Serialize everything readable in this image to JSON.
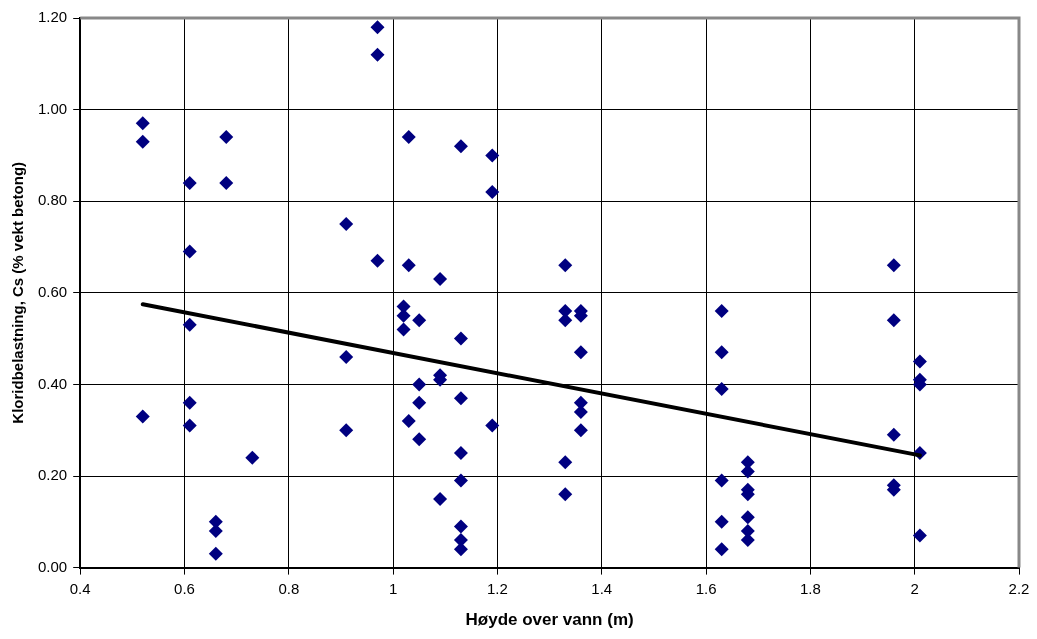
{
  "chart_data": {
    "type": "scatter",
    "xlabel": "Høyde over vann (m)",
    "ylabel": "Kloridbelastning, Cs (% vekt betong)",
    "xlim": [
      0.4,
      2.2
    ],
    "xticks": [
      0.4,
      0.6,
      0.8,
      1,
      1.2,
      1.4,
      1.6,
      1.8,
      2,
      2.2
    ],
    "ylim": [
      0,
      1.2
    ],
    "yticks": [
      {
        "value": 0,
        "label": "0.00"
      },
      {
        "value": 0.2,
        "label": "0.20"
      },
      {
        "value": 0.4,
        "label": "0.40"
      },
      {
        "value": 0.6,
        "label": "0.60"
      },
      {
        "value": 0.8,
        "label": "0.80"
      },
      {
        "value": 1,
        "label": "1.00"
      },
      {
        "value": 1.2,
        "label": "1.20"
      }
    ],
    "grid": true,
    "legend": false,
    "marker": "diamond",
    "series": [
      {
        "color": "#000080",
        "x": [
          0.52,
          0.52,
          0.52,
          0.61,
          0.61,
          0.61,
          0.61,
          0.61,
          0.66,
          0.66,
          0.66,
          0.68,
          0.68,
          0.73,
          0.91,
          0.91,
          0.91,
          0.97,
          0.97,
          0.97,
          1.02,
          1.02,
          1.02,
          1.03,
          1.03,
          1.03,
          1.05,
          1.05,
          1.05,
          1.05,
          1.09,
          1.09,
          1.09,
          1.09,
          1.13,
          1.13,
          1.13,
          1.13,
          1.13,
          1.13,
          1.13,
          1.13,
          1.19,
          1.19,
          1.19,
          1.33,
          1.33,
          1.33,
          1.33,
          1.33,
          1.36,
          1.36,
          1.36,
          1.36,
          1.36,
          1.36,
          1.63,
          1.63,
          1.63,
          1.63,
          1.63,
          1.63,
          1.68,
          1.68,
          1.68,
          1.68,
          1.68,
          1.68,
          1.68,
          1.96,
          1.96,
          1.96,
          1.96,
          1.96,
          2.01,
          2.01,
          2.01,
          2.01,
          2.01
        ],
        "values": [
          0.97,
          0.93,
          0.33,
          0.84,
          0.69,
          0.53,
          0.36,
          0.31,
          0.1,
          0.08,
          0.03,
          0.94,
          0.84,
          0.24,
          0.75,
          0.46,
          0.3,
          1.18,
          1.12,
          0.67,
          0.57,
          0.55,
          0.52,
          0.94,
          0.66,
          0.32,
          0.54,
          0.4,
          0.36,
          0.28,
          0.63,
          0.42,
          0.41,
          0.15,
          0.92,
          0.5,
          0.37,
          0.25,
          0.19,
          0.09,
          0.06,
          0.04,
          0.9,
          0.82,
          0.31,
          0.66,
          0.56,
          0.54,
          0.23,
          0.16,
          0.56,
          0.55,
          0.47,
          0.36,
          0.34,
          0.3,
          0.56,
          0.47,
          0.39,
          0.19,
          0.1,
          0.04,
          0.23,
          0.21,
          0.17,
          0.16,
          0.11,
          0.08,
          0.06,
          0.66,
          0.54,
          0.29,
          0.18,
          0.17,
          0.45,
          0.41,
          0.4,
          0.25,
          0.07
        ]
      },
      {
        "type": "line",
        "color": "#000000",
        "marker": "none",
        "line_style": "solid",
        "x": [
          0.52,
          2.01
        ],
        "values": [
          0.575,
          0.245
        ]
      }
    ]
  }
}
